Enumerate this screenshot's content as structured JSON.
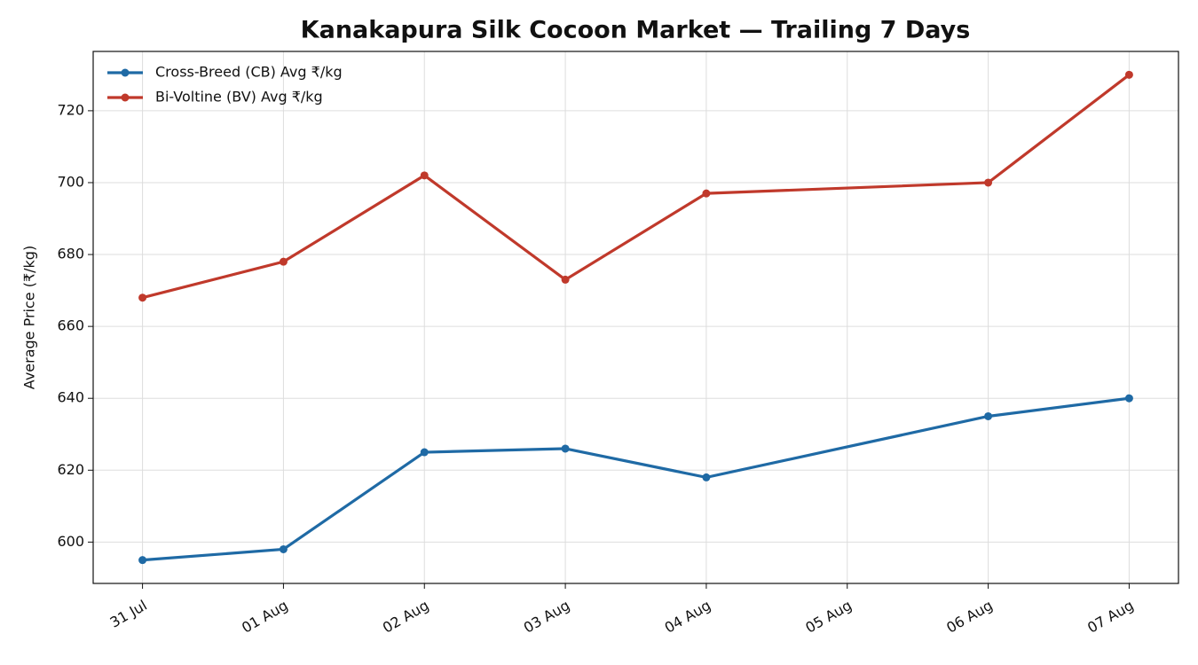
{
  "chart_data": {
    "type": "line",
    "title": "Kanakapura Silk Cocoon Market — Trailing 7 Days",
    "y_label": "Average Price (₹/kg)",
    "x": [
      "31 Jul",
      "01 Aug",
      "02 Aug",
      "03 Aug",
      "04 Aug",
      "06 Aug",
      "07 Aug"
    ],
    "xticks": [
      "31 Jul",
      "01 Aug",
      "02 Aug",
      "03 Aug",
      "04 Aug",
      "05 Aug",
      "06 Aug",
      "07 Aug"
    ],
    "series": [
      {
        "name": "Cross-Breed (CB) Avg ₹/kg",
        "color": "#1f6aa5",
        "values": [
          595,
          598,
          625,
          626,
          618,
          635,
          640
        ]
      },
      {
        "name": "Bi-Voltine (BV) Avg ₹/kg",
        "color": "#c0392b",
        "values": [
          668,
          678,
          702,
          673,
          697,
          700,
          730
        ]
      }
    ],
    "ylim": [
      588.5,
      736.5
    ],
    "yticks": [
      600,
      620,
      640,
      660,
      680,
      700,
      720
    ],
    "grid": true,
    "legend": "upper-left"
  }
}
